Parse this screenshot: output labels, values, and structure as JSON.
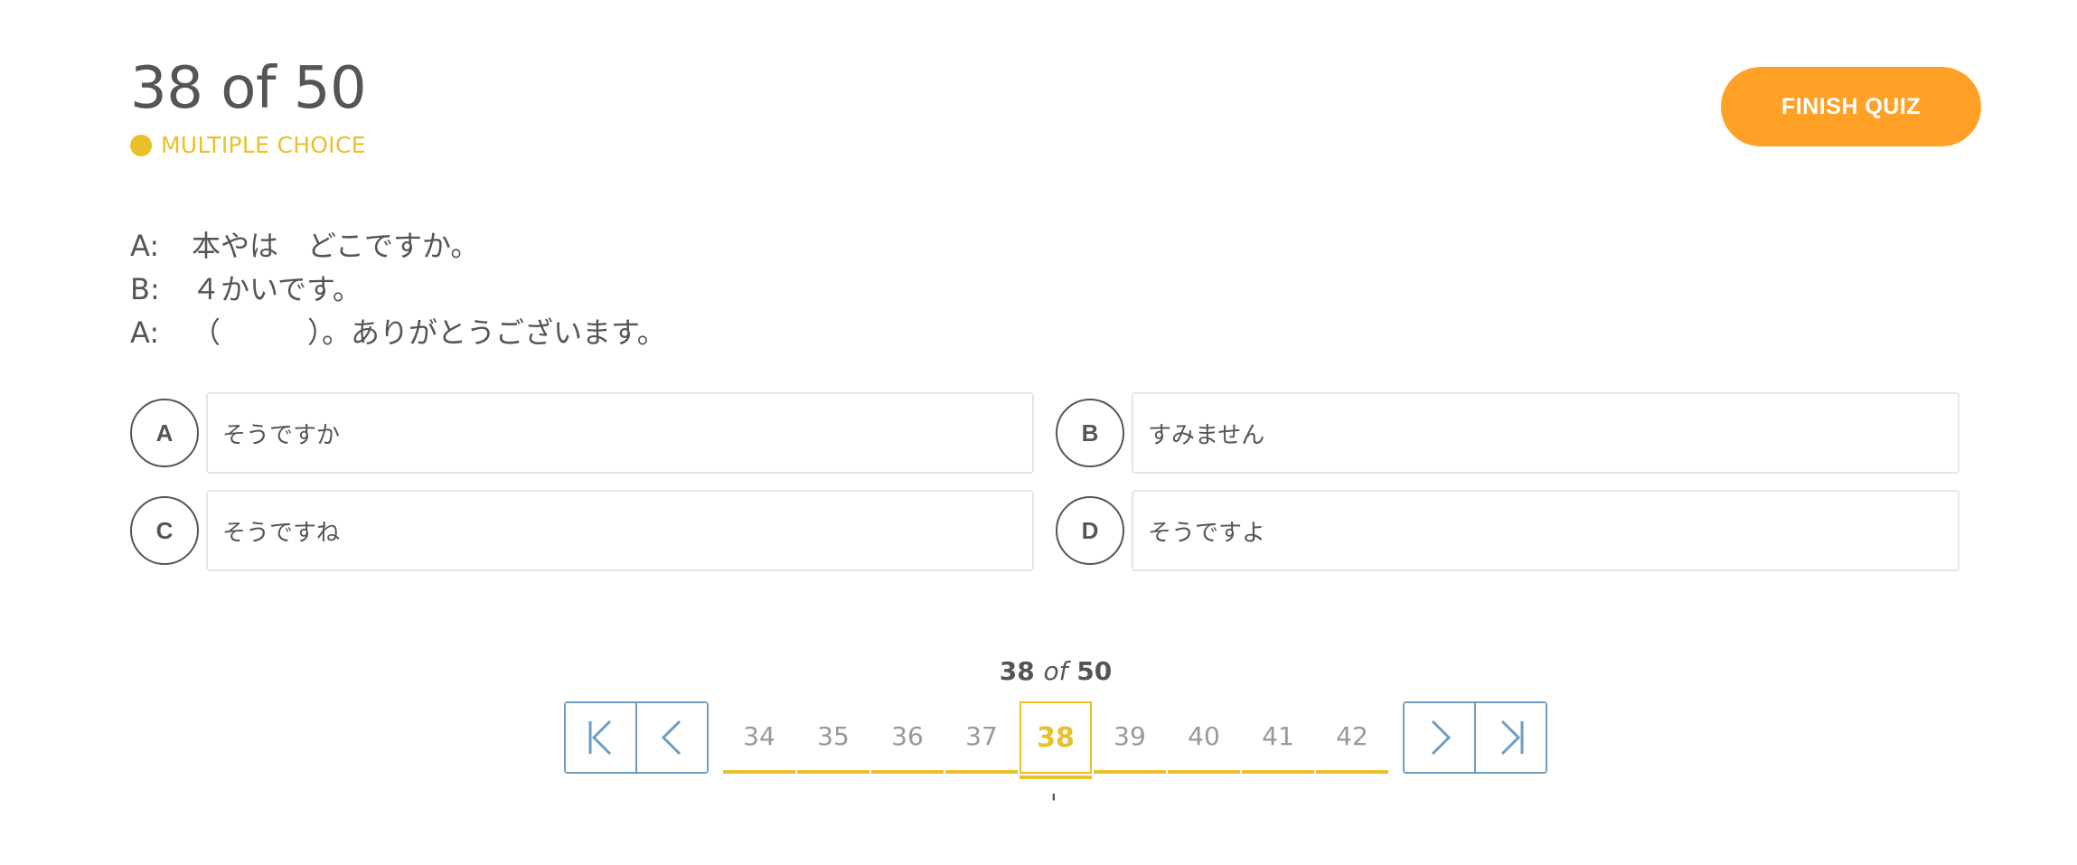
{
  "header": {
    "counter": "38 of 50",
    "question_type": "MULTIPLE CHOICE",
    "finish_label": "FINISH QUIZ"
  },
  "question": {
    "lines": [
      {
        "speaker": "A:",
        "text": "本やは　どこですか。"
      },
      {
        "speaker": "B:",
        "text": "４かいです。"
      },
      {
        "speaker": "A:",
        "text": "（　　　）。ありがとうございます。"
      }
    ]
  },
  "options": [
    {
      "letter": "A",
      "text": "そうですか"
    },
    {
      "letter": "B",
      "text": "すみません"
    },
    {
      "letter": "C",
      "text": "そうですね"
    },
    {
      "letter": "D",
      "text": "そうですよ"
    }
  ],
  "pager": {
    "current": "38",
    "of_word": "of",
    "total": "50",
    "pages": [
      "34",
      "35",
      "36",
      "37",
      "38",
      "39",
      "40",
      "41",
      "42"
    ],
    "mark": "'"
  },
  "colors": {
    "accent_yellow": "#e8c02a",
    "finish_orange": "#ffa126",
    "nav_blue": "#6b9dc4",
    "option_border": "#dde8ef"
  }
}
